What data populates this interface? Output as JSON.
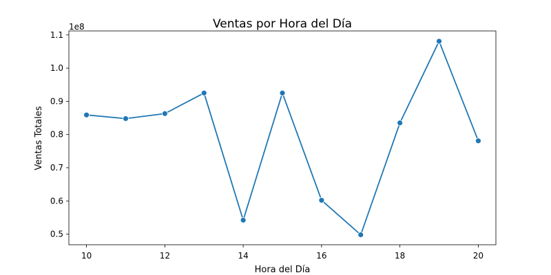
{
  "chart_data": {
    "type": "line",
    "title": "Ventas por Hora del Día",
    "xlabel": "Hora del Día",
    "ylabel": "Ventas Totales",
    "y_scale_offset": "1e8",
    "x_ticks": [
      10,
      12,
      14,
      16,
      18,
      20
    ],
    "x_tick_labels": [
      "10",
      "12",
      "14",
      "16",
      "18",
      "20"
    ],
    "y_ticks": [
      0.5,
      0.6,
      0.7,
      0.8,
      0.9,
      1.0,
      1.1
    ],
    "y_tick_labels": [
      "0.5",
      "0.6",
      "0.7",
      "0.8",
      "0.9",
      "1.0",
      "1.1"
    ],
    "xlim": [
      9.55,
      20.45
    ],
    "ylim": [
      0.468,
      1.112
    ],
    "grid": false,
    "series": [
      {
        "color": "#1f77b4",
        "marker": "circle",
        "x": [
          10,
          11,
          12,
          13,
          14,
          15,
          16,
          17,
          18,
          19,
          20
        ],
        "values": [
          0.859,
          0.848,
          0.863,
          0.925,
          0.542,
          0.925,
          0.602,
          0.498,
          0.835,
          1.081,
          0.781
        ]
      }
    ]
  }
}
